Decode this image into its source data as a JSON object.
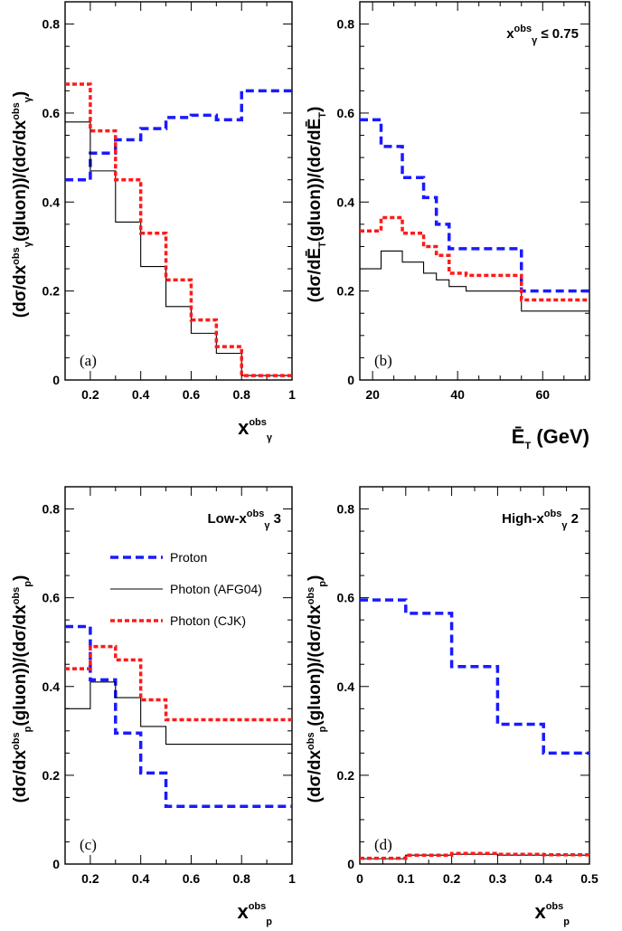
{
  "colors": {
    "proton": "#1a1aff",
    "photon_afg04": "#000000",
    "photon_cjk": "#ff1a1a"
  },
  "legend": {
    "proton": "Proton",
    "photon_afg04": "Photon (AFG04)",
    "photon_cjk": "Photon (CJK)"
  },
  "chart_data": [
    {
      "panel_label": "(a)",
      "type": "line",
      "step": true,
      "ylabel": {
        "pre": "(dσ/dx",
        "sup": "obs",
        "sub": "γ",
        "mid": "(gluon))/(dσ/dx",
        "sup2": "obs",
        "sub2": "γ",
        "post": ")"
      },
      "xlabel": {
        "main": "x",
        "sup": "obs",
        "sub": "γ"
      },
      "xlim": [
        0.1,
        1.0
      ],
      "ylim": [
        0,
        0.85
      ],
      "xticks": [
        "0.2",
        "0.4",
        "0.6",
        "0.8",
        "1"
      ],
      "xtick_values": [
        0.2,
        0.4,
        0.6,
        0.8,
        1.0
      ],
      "yticks": [
        "0",
        "0.2",
        "0.4",
        "0.6",
        "0.8"
      ],
      "ytick_values": [
        0,
        0.2,
        0.4,
        0.6,
        0.8
      ],
      "bin_edges": [
        0.1,
        0.2,
        0.3,
        0.4,
        0.5,
        0.6,
        0.7,
        0.8,
        1.0
      ],
      "series": [
        {
          "key": "proton",
          "values": [
            0.45,
            0.51,
            0.54,
            0.565,
            0.59,
            0.595,
            0.585,
            0.65
          ]
        },
        {
          "key": "photon_afg04",
          "values": [
            0.58,
            0.47,
            0.355,
            0.255,
            0.165,
            0.105,
            0.06,
            0.01
          ]
        },
        {
          "key": "photon_cjk",
          "values": [
            0.665,
            0.56,
            0.45,
            0.33,
            0.225,
            0.135,
            0.075,
            0.01
          ]
        }
      ]
    },
    {
      "panel_label": "(b)",
      "type": "line",
      "step": true,
      "annotation": {
        "main": "x",
        "sup": "obs",
        "sub": "γ",
        "rest": " ≤ 0.75"
      },
      "ylabel": {
        "pre": "(dσ/dĒ",
        "sub": "T",
        "mid": "(gluon))/(dσ/dĒ",
        "sub2": "T",
        "post": ")"
      },
      "xlabel": {
        "main": "Ē",
        "sub": "T",
        "rest": " (GeV)"
      },
      "xlim": [
        17,
        71
      ],
      "ylim": [
        0,
        0.85
      ],
      "xticks": [
        "20",
        "40",
        "60"
      ],
      "xtick_values": [
        20,
        40,
        60
      ],
      "yticks": [
        "0",
        "0.2",
        "0.4",
        "0.6",
        "0.8"
      ],
      "ytick_values": [
        0,
        0.2,
        0.4,
        0.6,
        0.8
      ],
      "bin_edges": [
        17,
        22,
        27,
        32,
        35,
        38,
        42,
        55,
        71
      ],
      "series": [
        {
          "key": "proton",
          "values": [
            0.585,
            0.525,
            0.455,
            0.41,
            0.35,
            0.295,
            0.295,
            0.2
          ]
        },
        {
          "key": "photon_afg04",
          "values": [
            0.25,
            0.29,
            0.265,
            0.24,
            0.225,
            0.21,
            0.2,
            0.155
          ]
        },
        {
          "key": "photon_cjk",
          "values": [
            0.335,
            0.365,
            0.33,
            0.3,
            0.28,
            0.24,
            0.235,
            0.18
          ]
        }
      ]
    },
    {
      "panel_label": "(c)",
      "type": "line",
      "step": true,
      "annotation": {
        "main": "Low-x",
        "sup": "obs",
        "sub": "γ",
        "rest": " 3"
      },
      "show_legend": true,
      "ylabel": {
        "pre": "(dσ/dx",
        "sup": "obs",
        "sub": "p",
        "mid": "(gluon))/(dσ/dx",
        "sup2": "obs",
        "sub2": "p",
        "post": ")"
      },
      "xlabel": {
        "main": "x",
        "sup": "obs",
        "sub": "p"
      },
      "xlim": [
        0.1,
        1.0
      ],
      "ylim": [
        0,
        0.85
      ],
      "xticks": [
        "0.2",
        "0.4",
        "0.6",
        "0.8",
        "1"
      ],
      "xtick_values": [
        0.2,
        0.4,
        0.6,
        0.8,
        1.0
      ],
      "yticks": [
        "0",
        "0.2",
        "0.4",
        "0.6",
        "0.8"
      ],
      "ytick_values": [
        0,
        0.2,
        0.4,
        0.6,
        0.8
      ],
      "bin_edges": [
        0.1,
        0.2,
        0.3,
        0.4,
        0.5,
        1.0
      ],
      "series": [
        {
          "key": "proton",
          "values": [
            0.535,
            0.415,
            0.295,
            0.205,
            0.13
          ]
        },
        {
          "key": "photon_afg04",
          "values": [
            0.35,
            0.41,
            0.375,
            0.31,
            0.27
          ]
        },
        {
          "key": "photon_cjk",
          "values": [
            0.44,
            0.49,
            0.46,
            0.37,
            0.325
          ]
        }
      ]
    },
    {
      "panel_label": "(d)",
      "type": "line",
      "step": true,
      "annotation": {
        "main": "High-x",
        "sup": "obs",
        "sub": "γ",
        "rest": " 2"
      },
      "ylabel": {
        "pre": "(dσ/dx",
        "sup": "obs",
        "sub": "p",
        "mid": "(gluon))/(dσ/dx",
        "sup2": "obs",
        "sub2": "p",
        "post": ")"
      },
      "xlabel": {
        "main": "x",
        "sup": "obs",
        "sub": "p"
      },
      "xlim": [
        0,
        0.5
      ],
      "ylim": [
        0,
        0.85
      ],
      "xticks": [
        "0",
        "0.1",
        "0.2",
        "0.3",
        "0.4",
        "0.5"
      ],
      "xtick_values": [
        0,
        0.1,
        0.2,
        0.3,
        0.4,
        0.5
      ],
      "yticks": [
        "0",
        "0.2",
        "0.4",
        "0.6",
        "0.8"
      ],
      "ytick_values": [
        0,
        0.2,
        0.4,
        0.6,
        0.8
      ],
      "bin_edges": [
        0,
        0.1,
        0.2,
        0.3,
        0.4,
        0.5
      ],
      "series": [
        {
          "key": "proton",
          "values": [
            0.595,
            0.565,
            0.445,
            0.315,
            0.25
          ]
        },
        {
          "key": "photon_afg04",
          "values": [
            0.012,
            0.02,
            0.022,
            0.02,
            0.02
          ]
        },
        {
          "key": "photon_cjk",
          "values": [
            0.013,
            0.02,
            0.024,
            0.022,
            0.021
          ]
        }
      ]
    }
  ]
}
